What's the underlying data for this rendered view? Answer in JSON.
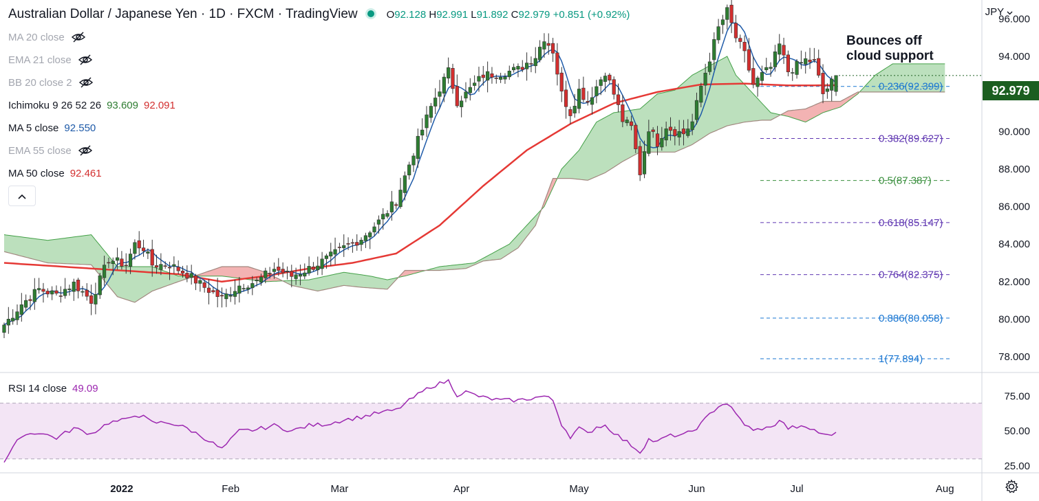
{
  "header": {
    "title": "Australian Dollar / Japanese Yen · 1D · FXCM · TradingView",
    "open_label": "O",
    "open": "92.128",
    "high_label": "H",
    "high": "92.991",
    "low_label": "L",
    "low": "91.892",
    "close_label": "C",
    "close": "92.979",
    "change": "+0.851 (+0.92%)"
  },
  "currency": "JPY",
  "indicators": [
    {
      "label": "MA 20 close",
      "value": "",
      "hidden": true
    },
    {
      "label": "EMA 21 close",
      "value": "",
      "hidden": true
    },
    {
      "label": "BB 20 close 2",
      "value": "",
      "hidden": true
    },
    {
      "label": "Ichimoku 9 26 52 26",
      "value": "93.609",
      "value2": "92.091",
      "hidden": false
    },
    {
      "label": "MA 5 close",
      "value": "92.550",
      "hidden": false
    },
    {
      "label": "EMA 55 close",
      "value": "",
      "hidden": true
    },
    {
      "label": "MA 50 close",
      "value": "92.461",
      "hidden": false
    }
  ],
  "rsi": {
    "label": "RSI 14 close",
    "value": "49.09"
  },
  "annotation": "Bounces off cloud support",
  "annotation_lines": [
    "Bounces off",
    "cloud support"
  ],
  "last_price": "92.979",
  "colors": {
    "up": "#2e7d32",
    "down": "#d32f2f",
    "ma5": "#1e5aa8",
    "ma50": "#e53935",
    "cloud_bull": "#a5d6a7",
    "cloud_bear": "#ef9a9a",
    "rsi": "#9c27b0",
    "rsi_band": "#f3e5f5",
    "fib": "#5e35b1",
    "fib_green": "#388e3c",
    "fib_blue": "#1976d2"
  },
  "chart_data": {
    "type": "candlestick",
    "title": "Australian Dollar / Japanese Yen · 1D · FXCM",
    "price_axis": {
      "ylim": [
        77.2,
        97.0
      ],
      "ticks": [
        "96.000",
        "94.000",
        "92.000",
        "90.000",
        "88.000",
        "86.000",
        "84.000",
        "82.000",
        "80.000",
        "78.000"
      ]
    },
    "time_axis": {
      "ticks": [
        "2022",
        "Feb",
        "Mar",
        "Apr",
        "May",
        "Jun",
        "Jul",
        "Aug"
      ]
    },
    "rsi_axis": {
      "ylim": [
        20,
        92
      ],
      "ticks": [
        "75.00",
        "50.00",
        "25.00"
      ],
      "band": [
        30,
        70
      ]
    },
    "fib_levels": [
      {
        "label": "0.236(92.399)",
        "value": 92.399
      },
      {
        "label": "0.382(89.627)",
        "value": 89.627
      },
      {
        "label": "0.5(87.387)",
        "value": 87.387
      },
      {
        "label": "0.618(85.147)",
        "value": 85.147
      },
      {
        "label": "0.764(82.375)",
        "value": 82.375
      },
      {
        "label": "0.886(80.058)",
        "value": 80.058
      },
      {
        "label": "1(77.894)",
        "value": 77.894
      }
    ],
    "close_anchors": [
      [
        0,
        79.7
      ],
      [
        4,
        80.8
      ],
      [
        8,
        81.6
      ],
      [
        12,
        81.3
      ],
      [
        16,
        81.9
      ],
      [
        20,
        81.0
      ],
      [
        24,
        83.2
      ],
      [
        28,
        82.9
      ],
      [
        30,
        84.0
      ],
      [
        32,
        83.8
      ],
      [
        34,
        82.9
      ],
      [
        38,
        82.9
      ],
      [
        42,
        82.4
      ],
      [
        46,
        81.7
      ],
      [
        50,
        81.1
      ],
      [
        54,
        81.8
      ],
      [
        58,
        82.0
      ],
      [
        62,
        82.7
      ],
      [
        66,
        82.3
      ],
      [
        70,
        82.7
      ],
      [
        74,
        83.2
      ],
      [
        78,
        83.8
      ],
      [
        82,
        84.3
      ],
      [
        86,
        85.2
      ],
      [
        90,
        86.3
      ],
      [
        94,
        88.9
      ],
      [
        98,
        91.3
      ],
      [
        100,
        92.3
      ],
      [
        102,
        93.2
      ],
      [
        104,
        91.6
      ],
      [
        106,
        92.0
      ],
      [
        110,
        93.0
      ],
      [
        114,
        93.1
      ],
      [
        118,
        93.3
      ],
      [
        122,
        94.0
      ],
      [
        124,
        95.0
      ],
      [
        126,
        94.3
      ],
      [
        128,
        92.0
      ],
      [
        130,
        91.0
      ],
      [
        132,
        92.2
      ],
      [
        134,
        91.6
      ],
      [
        136,
        92.4
      ],
      [
        138,
        93.2
      ],
      [
        140,
        92.0
      ],
      [
        142,
        90.6
      ],
      [
        144,
        90.2
      ],
      [
        146,
        87.8
      ],
      [
        148,
        90.2
      ],
      [
        150,
        89.4
      ],
      [
        152,
        90.3
      ],
      [
        154,
        90.0
      ],
      [
        156,
        89.9
      ],
      [
        158,
        90.5
      ],
      [
        160,
        92.4
      ],
      [
        162,
        93.9
      ],
      [
        164,
        95.5
      ],
      [
        166,
        96.4
      ],
      [
        168,
        95.0
      ],
      [
        170,
        94.1
      ],
      [
        172,
        92.5
      ],
      [
        174,
        93.0
      ],
      [
        176,
        93.4
      ],
      [
        178,
        94.6
      ],
      [
        180,
        93.2
      ],
      [
        182,
        93.5
      ],
      [
        184,
        93.8
      ],
      [
        186,
        93.7
      ],
      [
        188,
        92.0
      ],
      [
        190,
        92.6
      ],
      [
        191,
        92.979
      ]
    ],
    "ma50_anchors": [
      [
        0,
        83.0
      ],
      [
        20,
        82.7
      ],
      [
        40,
        82.4
      ],
      [
        50,
        82.0
      ],
      [
        60,
        82.3
      ],
      [
        70,
        82.7
      ],
      [
        80,
        83.0
      ],
      [
        90,
        83.5
      ],
      [
        100,
        85.0
      ],
      [
        110,
        87.1
      ],
      [
        120,
        89.0
      ],
      [
        130,
        90.4
      ],
      [
        140,
        91.5
      ],
      [
        150,
        92.1
      ],
      [
        160,
        92.5
      ],
      [
        170,
        92.55
      ],
      [
        180,
        92.45
      ],
      [
        191,
        92.46
      ]
    ],
    "cloud_top_anchors": [
      [
        0,
        84.5
      ],
      [
        10,
        84.2
      ],
      [
        20,
        84.5
      ],
      [
        26,
        82.8
      ],
      [
        34,
        82.8
      ],
      [
        40,
        82.3
      ],
      [
        50,
        82.3
      ],
      [
        60,
        82.0
      ],
      [
        70,
        82.1
      ],
      [
        78,
        82.5
      ],
      [
        84,
        82.3
      ],
      [
        88,
        82.1
      ],
      [
        92,
        82.3
      ],
      [
        100,
        82.8
      ],
      [
        108,
        83.0
      ],
      [
        112,
        83.5
      ],
      [
        116,
        84.0
      ],
      [
        120,
        85.0
      ],
      [
        124,
        86.0
      ],
      [
        128,
        88.0
      ],
      [
        132,
        89.0
      ],
      [
        136,
        90.5
      ],
      [
        140,
        91.0
      ],
      [
        146,
        91.2
      ],
      [
        150,
        92.0
      ],
      [
        154,
        92.2
      ],
      [
        158,
        93.0
      ],
      [
        162,
        93.5
      ],
      [
        166,
        94.0
      ],
      [
        168,
        93.0
      ],
      [
        172,
        92.0
      ],
      [
        176,
        91.0
      ],
      [
        180,
        90.8
      ],
      [
        184,
        90.5
      ],
      [
        188,
        91.0
      ],
      [
        192,
        91.3
      ],
      [
        196,
        92.0
      ],
      [
        200,
        93.0
      ],
      [
        204,
        93.6
      ],
      [
        216,
        93.6
      ]
    ],
    "cloud_bot_anchors": [
      [
        0,
        83.6
      ],
      [
        10,
        83.0
      ],
      [
        20,
        82.9
      ],
      [
        26,
        81.2
      ],
      [
        30,
        80.9
      ],
      [
        34,
        81.5
      ],
      [
        40,
        82.0
      ],
      [
        50,
        82.8
      ],
      [
        56,
        82.8
      ],
      [
        60,
        82.5
      ],
      [
        66,
        81.8
      ],
      [
        72,
        81.5
      ],
      [
        78,
        81.8
      ],
      [
        82,
        81.7
      ],
      [
        88,
        81.6
      ],
      [
        92,
        82.6
      ],
      [
        100,
        82.6
      ],
      [
        106,
        82.7
      ],
      [
        110,
        83.1
      ],
      [
        114,
        83.2
      ],
      [
        118,
        83.8
      ],
      [
        122,
        85.0
      ],
      [
        126,
        87.5
      ],
      [
        130,
        87.5
      ],
      [
        134,
        87.4
      ],
      [
        138,
        87.8
      ],
      [
        142,
        88.4
      ],
      [
        146,
        88.9
      ],
      [
        150,
        88.9
      ],
      [
        154,
        88.9
      ],
      [
        158,
        89.3
      ],
      [
        162,
        89.9
      ],
      [
        166,
        90.3
      ],
      [
        170,
        90.5
      ],
      [
        174,
        90.6
      ],
      [
        176,
        90.6
      ],
      [
        180,
        91.1
      ],
      [
        184,
        91.2
      ],
      [
        188,
        91.6
      ],
      [
        192,
        91.6
      ],
      [
        196,
        92.1
      ],
      [
        200,
        92.1
      ],
      [
        216,
        92.1
      ]
    ],
    "rsi_anchors": [
      [
        0,
        28
      ],
      [
        4,
        47
      ],
      [
        8,
        49
      ],
      [
        12,
        45
      ],
      [
        16,
        52
      ],
      [
        20,
        48
      ],
      [
        24,
        56
      ],
      [
        28,
        58
      ],
      [
        30,
        62
      ],
      [
        32,
        60
      ],
      [
        34,
        56
      ],
      [
        38,
        56
      ],
      [
        42,
        52
      ],
      [
        46,
        45
      ],
      [
        50,
        37
      ],
      [
        54,
        50
      ],
      [
        58,
        51
      ],
      [
        62,
        54
      ],
      [
        66,
        50
      ],
      [
        70,
        54
      ],
      [
        74,
        55
      ],
      [
        78,
        58
      ],
      [
        82,
        60
      ],
      [
        86,
        63
      ],
      [
        90,
        65
      ],
      [
        94,
        74
      ],
      [
        98,
        82
      ],
      [
        100,
        84
      ],
      [
        102,
        86
      ],
      [
        104,
        76
      ],
      [
        106,
        78
      ],
      [
        110,
        74
      ],
      [
        114,
        72
      ],
      [
        118,
        72
      ],
      [
        122,
        74
      ],
      [
        124,
        75
      ],
      [
        126,
        72
      ],
      [
        128,
        55
      ],
      [
        130,
        46
      ],
      [
        132,
        52
      ],
      [
        134,
        48
      ],
      [
        136,
        53
      ],
      [
        138,
        54
      ],
      [
        140,
        49
      ],
      [
        142,
        44
      ],
      [
        144,
        40
      ],
      [
        146,
        35
      ],
      [
        148,
        44
      ],
      [
        150,
        42
      ],
      [
        152,
        46
      ],
      [
        154,
        47
      ],
      [
        156,
        47
      ],
      [
        158,
        50
      ],
      [
        160,
        55
      ],
      [
        162,
        62
      ],
      [
        164,
        68
      ],
      [
        166,
        70
      ],
      [
        168,
        62
      ],
      [
        170,
        55
      ],
      [
        172,
        50
      ],
      [
        174,
        52
      ],
      [
        176,
        52
      ],
      [
        178,
        58
      ],
      [
        180,
        52
      ],
      [
        182,
        53
      ],
      [
        184,
        52
      ],
      [
        186,
        51
      ],
      [
        188,
        47
      ],
      [
        190,
        48
      ],
      [
        191,
        49.09
      ]
    ]
  }
}
